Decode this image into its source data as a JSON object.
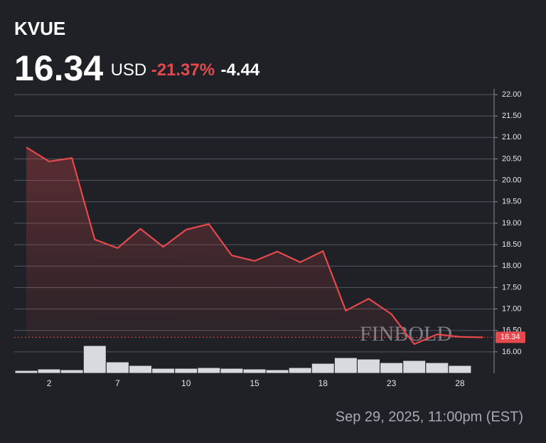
{
  "chart_data": {
    "type": "line",
    "header": {
      "ticker": "KVUE",
      "price": "16.34",
      "currency": "USD",
      "change_pct": "-21.37%",
      "change": "-4.44"
    },
    "timestamp": "Sep 29, 2025, 11:00pm (EST)",
    "watermark": "FINBOLD",
    "categories": [
      null,
      "2",
      null,
      null,
      "7",
      null,
      null,
      "10",
      null,
      null,
      "15",
      null,
      null,
      "18",
      null,
      null,
      "23",
      null,
      null,
      "28",
      null
    ],
    "series": [
      {
        "name": "KVUE",
        "color": "#e5484d",
        "values": [
          20.77,
          20.44,
          20.52,
          18.62,
          18.42,
          18.87,
          18.45,
          18.85,
          18.98,
          18.25,
          18.12,
          18.34,
          18.09,
          18.35,
          16.96,
          17.24,
          16.88,
          16.18,
          16.41,
          16.35,
          16.34
        ]
      }
    ],
    "volume": {
      "color": "#d9dae0",
      "values": [
        4,
        6,
        5,
        39,
        16,
        11,
        7,
        7,
        8,
        7,
        6,
        5,
        8,
        14,
        22,
        20,
        15,
        18,
        15,
        11,
        null
      ]
    },
    "last_value": {
      "value": 16.34,
      "label": "16.34"
    },
    "ylim": [
      15.5,
      22.0
    ],
    "yticks": [
      {
        "value": 16,
        "label": "16.00"
      },
      {
        "value": 16.5,
        "label": "16.50"
      },
      {
        "value": 17,
        "label": "17.00"
      },
      {
        "value": 17.5,
        "label": "17.50"
      },
      {
        "value": 18,
        "label": "18.00"
      },
      {
        "value": 18.5,
        "label": "18.50"
      },
      {
        "value": 19,
        "label": "19.00"
      },
      {
        "value": 19.5,
        "label": "19.50"
      },
      {
        "value": 20,
        "label": "20.00"
      },
      {
        "value": 20.5,
        "label": "20.50"
      },
      {
        "value": 21,
        "label": "21.00"
      },
      {
        "value": 21.5,
        "label": "21.50"
      },
      {
        "value": 22,
        "label": "22.00"
      }
    ],
    "grid": true
  }
}
